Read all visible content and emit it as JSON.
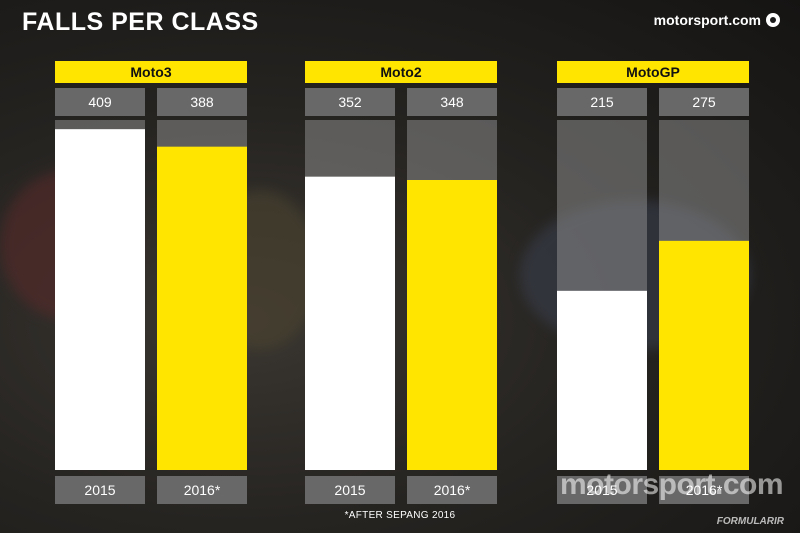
{
  "title": "FALLS PER CLASS",
  "logo_text": "motorsport.com",
  "footnote": "*AFTER SEPANG 2016",
  "watermark": "motorsport.com",
  "watermark_formula": "FORMULARIR",
  "colors": {
    "accent": "#ffe500",
    "bar_2015": "#ffffff",
    "bar_2016": "#ffe500",
    "panel_grey": "#686868"
  },
  "chart_data": {
    "type": "bar",
    "title": "FALLS PER CLASS",
    "groups": [
      {
        "name": "Moto3",
        "categories": [
          "2015",
          "2016*"
        ],
        "values": [
          409,
          388
        ]
      },
      {
        "name": "Moto2",
        "categories": [
          "2015",
          "2016*"
        ],
        "values": [
          352,
          348
        ]
      },
      {
        "name": "MotoGP",
        "categories": [
          "2015",
          "2016*"
        ],
        "values": [
          215,
          275
        ]
      }
    ],
    "ylim": [
      0,
      420
    ],
    "grid": false,
    "legend": "none"
  }
}
